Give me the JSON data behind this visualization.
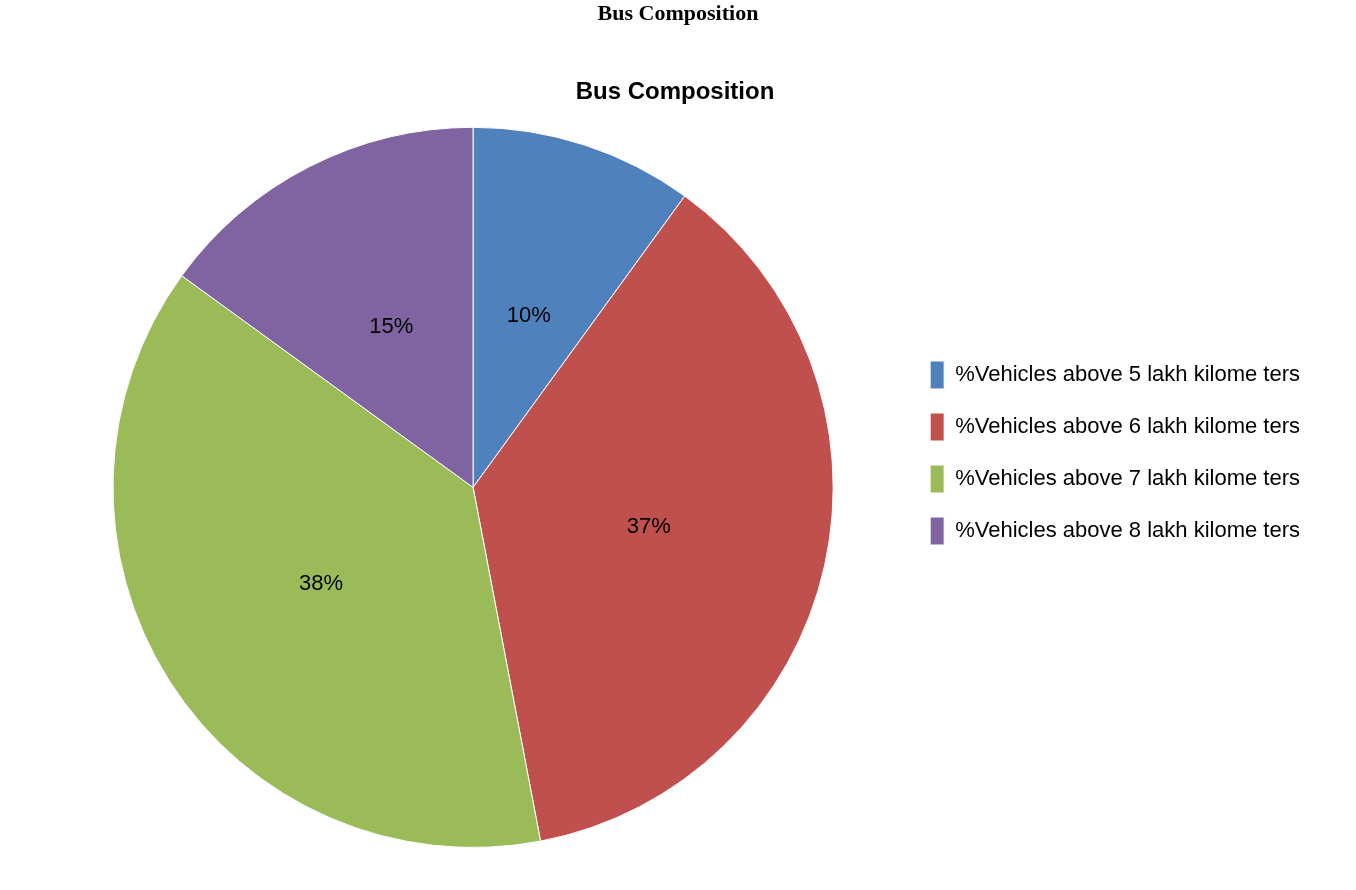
{
  "chart_data": {
    "type": "pie",
    "title": "Bus Composition",
    "subtitle": "Bus Composition",
    "categories": [
      "%Vehicles above 5 lakh kilome ters",
      "%Vehicles above 6 lakh kilome ters",
      "%Vehicles above 7 lakh kilome ters",
      "%Vehicles above 8 lakh kilome ters"
    ],
    "values": [
      10,
      37,
      38,
      15
    ],
    "colors": [
      "#4f81bd",
      "#c0504d",
      "#9bbb59",
      "#8064a2"
    ],
    "value_labels": [
      "10%",
      "37%",
      "38%",
      "15%"
    ],
    "legend": "right"
  }
}
